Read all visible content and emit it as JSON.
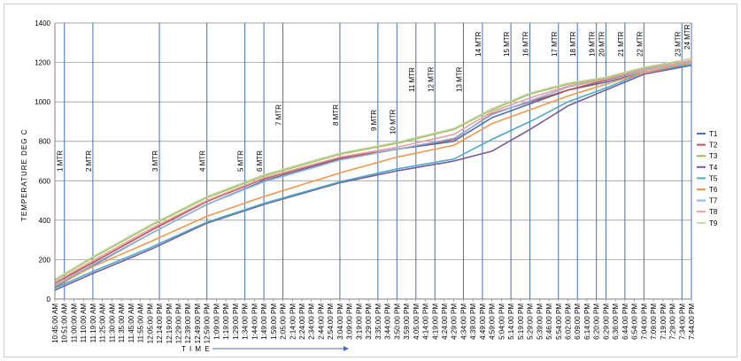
{
  "chart_data": {
    "type": "line",
    "title": "",
    "xlabel": "T I M E",
    "ylabel": "TEMPERATURE   DEG  C",
    "ylim": [
      0,
      1400
    ],
    "yticks": [
      "0",
      "200",
      "400",
      "600",
      "800",
      "1000",
      "1200",
      "1400"
    ],
    "grid": true,
    "legend_position": "right",
    "x_categories": [
      "10:45:00 AM",
      "10:51:00 AM",
      "11:00:00 AM",
      "11:10:00 AM",
      "11:19:00 AM",
      "11:25:00 AM",
      "11:30:00 AM",
      "11:35:00 AM",
      "11:45:00 AM",
      "11:55:00 AM",
      "12:05:00 PM",
      "12:14:00 PM",
      "12:19:00 PM",
      "12:29:00 PM",
      "12:39:00 PM",
      "12:49:00 PM",
      "12:59:00 PM",
      "1:09:00 PM",
      "1:19:00 PM",
      "1:29:00 PM",
      "1:34:00 PM",
      "1:44:00 PM",
      "1:49:00 PM",
      "1:59:00 PM",
      "2:05:00 PM",
      "2:14:00 PM",
      "2:24:00 PM",
      "2:34:00 PM",
      "2:44:00 PM",
      "2:54:00 PM",
      "3:04:00 PM",
      "3:09:00 PM",
      "3:19:00 PM",
      "3:29:00 PM",
      "3:35:00 PM",
      "3:44:00 PM",
      "3:50:00 PM",
      "3:59:00 PM",
      "4:05:00 PM",
      "4:14:00 PM",
      "4:19:00 PM",
      "4:24:00 PM",
      "4:29:00 PM",
      "4:34:00 PM",
      "4:39:00 PM",
      "4:49:00 PM",
      "4:59:00 PM",
      "5:04:00 PM",
      "5:14:00 PM",
      "5:19:00 PM",
      "5:29:00 PM",
      "5:39:00 PM",
      "5:46:00 PM",
      "5:54:00 PM",
      "6:02:00 PM",
      "6:09:00 PM",
      "6:14:00 PM",
      "6:20:00 PM",
      "6:29:00 PM",
      "6:36:00 PM",
      "6:44:00 PM",
      "6:54:00 PM",
      "7:04:00 PM",
      "7:09:00 PM",
      "7:19:00 PM",
      "7:29:00 PM",
      "7:34:00 PM",
      "7:44:00 PM"
    ],
    "markers": [
      {
        "label": "1 MTR",
        "x": "10:51:00 AM"
      },
      {
        "label": "2 MTR",
        "x": "11:19:00 AM"
      },
      {
        "label": "3 MTR",
        "x": "12:14:00 PM"
      },
      {
        "label": "4 MTR",
        "x": "12:59:00 PM"
      },
      {
        "label": "5 MTR",
        "x": "1:34:00 PM"
      },
      {
        "label": "6 MTR",
        "x": "1:49:00 PM"
      },
      {
        "label": "7 MTR",
        "x": "2:05:00 PM"
      },
      {
        "label": "8 MTR",
        "x": "3:04:00 PM"
      },
      {
        "label": "9 MTR",
        "x": "3:35:00 PM"
      },
      {
        "label": "10 MTR",
        "x": "3:50:00 PM"
      },
      {
        "label": "11 MTR",
        "x": "4:05:00 PM"
      },
      {
        "label": "12 MTR",
        "x": "4:19:00 PM"
      },
      {
        "label": "13 MTR",
        "x": "4:34:00 PM"
      },
      {
        "label": "14 MTR",
        "x": "4:49:00 PM"
      },
      {
        "label": "15 MTR",
        "x": "5:14:00 PM"
      },
      {
        "label": "16 MTR",
        "x": "5:29:00 PM"
      },
      {
        "label": "17 MTR",
        "x": "5:54:00 PM"
      },
      {
        "label": "18 MTR",
        "x": "6:09:00 PM"
      },
      {
        "label": "19 MTR",
        "x": "6:20:00 PM"
      },
      {
        "label": "20 MTR",
        "x": "6:29:00 PM"
      },
      {
        "label": "21 MTR",
        "x": "6:44:00 PM"
      },
      {
        "label": "22 MTR",
        "x": "7:04:00 PM"
      },
      {
        "label": "23 MTR",
        "x": "7:34:00 PM"
      },
      {
        "label": "24 MTR",
        "x": "7:44:00 PM"
      }
    ],
    "series": [
      {
        "name": "T1",
        "color": "#4a6fb5",
        "anchors": [
          [
            0,
            60
          ],
          [
            4,
            170
          ],
          [
            10,
            330
          ],
          [
            16,
            480
          ],
          [
            22,
            600
          ],
          [
            30,
            710
          ],
          [
            36,
            760
          ],
          [
            42,
            800
          ],
          [
            46,
            920
          ],
          [
            50,
            990
          ],
          [
            54,
            1060
          ],
          [
            58,
            1100
          ],
          [
            62,
            1150
          ],
          [
            67,
            1190
          ]
        ]
      },
      {
        "name": "T2",
        "color": "#c0504d",
        "anchors": [
          [
            0,
            80
          ],
          [
            4,
            185
          ],
          [
            10,
            345
          ],
          [
            16,
            495
          ],
          [
            22,
            610
          ],
          [
            30,
            715
          ],
          [
            36,
            760
          ],
          [
            42,
            810
          ],
          [
            46,
            940
          ],
          [
            50,
            1000
          ],
          [
            54,
            1060
          ],
          [
            58,
            1110
          ],
          [
            62,
            1160
          ],
          [
            67,
            1210
          ]
        ]
      },
      {
        "name": "T3",
        "color": "#9bbb59",
        "anchors": [
          [
            0,
            95
          ],
          [
            4,
            210
          ],
          [
            10,
            370
          ],
          [
            16,
            515
          ],
          [
            22,
            625
          ],
          [
            30,
            735
          ],
          [
            36,
            790
          ],
          [
            42,
            860
          ],
          [
            46,
            960
          ],
          [
            50,
            1040
          ],
          [
            54,
            1090
          ],
          [
            58,
            1120
          ],
          [
            62,
            1170
          ],
          [
            67,
            1220
          ]
        ]
      },
      {
        "name": "T4",
        "color": "#7a5a9c",
        "anchors": [
          [
            0,
            45
          ],
          [
            4,
            130
          ],
          [
            10,
            250
          ],
          [
            16,
            385
          ],
          [
            22,
            480
          ],
          [
            30,
            590
          ],
          [
            36,
            650
          ],
          [
            42,
            700
          ],
          [
            46,
            750
          ],
          [
            50,
            860
          ],
          [
            54,
            980
          ],
          [
            58,
            1060
          ],
          [
            62,
            1140
          ],
          [
            67,
            1185
          ]
        ]
      },
      {
        "name": "T5",
        "color": "#4bacc6",
        "anchors": [
          [
            0,
            55
          ],
          [
            4,
            140
          ],
          [
            10,
            260
          ],
          [
            16,
            390
          ],
          [
            22,
            485
          ],
          [
            30,
            595
          ],
          [
            36,
            660
          ],
          [
            42,
            710
          ],
          [
            46,
            810
          ],
          [
            50,
            900
          ],
          [
            54,
            1000
          ],
          [
            58,
            1070
          ],
          [
            62,
            1150
          ],
          [
            67,
            1190
          ]
        ]
      },
      {
        "name": "T6",
        "color": "#f79646",
        "anchors": [
          [
            0,
            65
          ],
          [
            4,
            165
          ],
          [
            10,
            290
          ],
          [
            16,
            420
          ],
          [
            22,
            520
          ],
          [
            30,
            640
          ],
          [
            36,
            720
          ],
          [
            42,
            780
          ],
          [
            46,
            890
          ],
          [
            50,
            960
          ],
          [
            54,
            1030
          ],
          [
            58,
            1090
          ],
          [
            62,
            1150
          ],
          [
            67,
            1200
          ]
        ]
      },
      {
        "name": "T7",
        "color": "#8eb4e3",
        "anchors": [
          [
            0,
            70
          ],
          [
            4,
            175
          ],
          [
            10,
            330
          ],
          [
            16,
            480
          ],
          [
            22,
            595
          ],
          [
            30,
            705
          ],
          [
            36,
            760
          ],
          [
            42,
            815
          ],
          [
            46,
            935
          ],
          [
            50,
            1005
          ],
          [
            54,
            1075
          ],
          [
            58,
            1115
          ],
          [
            62,
            1160
          ],
          [
            67,
            1205
          ]
        ]
      },
      {
        "name": "T8",
        "color": "#e6a1a0",
        "anchors": [
          [
            0,
            85
          ],
          [
            4,
            195
          ],
          [
            10,
            355
          ],
          [
            16,
            500
          ],
          [
            22,
            615
          ],
          [
            30,
            720
          ],
          [
            36,
            770
          ],
          [
            42,
            835
          ],
          [
            46,
            950
          ],
          [
            50,
            1020
          ],
          [
            54,
            1080
          ],
          [
            58,
            1115
          ],
          [
            62,
            1165
          ],
          [
            67,
            1210
          ]
        ]
      },
      {
        "name": "T9",
        "color": "#c4d79b",
        "anchors": [
          [
            0,
            100
          ],
          [
            4,
            215
          ],
          [
            10,
            375
          ],
          [
            16,
            520
          ],
          [
            22,
            630
          ],
          [
            30,
            740
          ],
          [
            36,
            795
          ],
          [
            42,
            865
          ],
          [
            46,
            965
          ],
          [
            50,
            1045
          ],
          [
            54,
            1095
          ],
          [
            58,
            1125
          ],
          [
            62,
            1175
          ],
          [
            67,
            1220
          ]
        ]
      }
    ]
  }
}
